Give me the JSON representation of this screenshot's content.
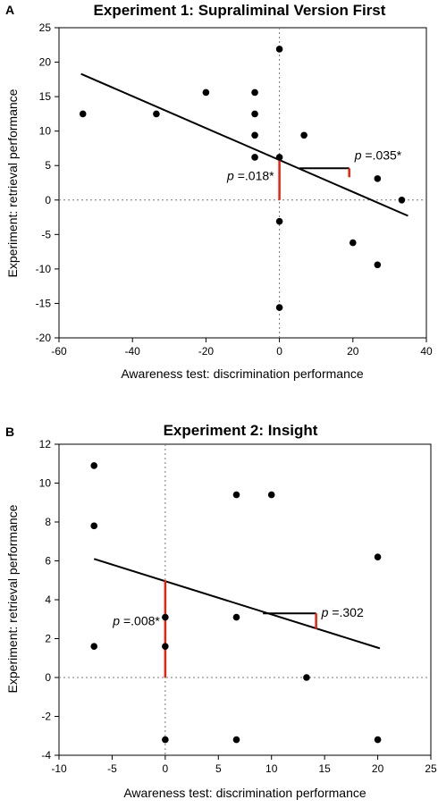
{
  "chart_data": [
    {
      "panel": "A",
      "type": "scatter",
      "title": "Experiment 1: Supraliminal Version First",
      "xlabel": "Awareness test: discrimination performance",
      "ylabel": "Experiment: retrieval performance",
      "xlim": [
        -60,
        40
      ],
      "ylim": [
        -20,
        25
      ],
      "xticks": [
        -60,
        -40,
        -20,
        0,
        20,
        40
      ],
      "yticks": [
        -20,
        -15,
        -10,
        -5,
        0,
        5,
        10,
        15,
        20,
        25
      ],
      "reference_lines": {
        "x": 0,
        "y": 0,
        "style": "dotted"
      },
      "points": [
        {
          "x": -53.5,
          "y": 12.5
        },
        {
          "x": -33.5,
          "y": 12.5
        },
        {
          "x": -20,
          "y": 15.6
        },
        {
          "x": -6.7,
          "y": 15.6
        },
        {
          "x": -6.7,
          "y": 12.5
        },
        {
          "x": -6.7,
          "y": 9.4
        },
        {
          "x": -6.7,
          "y": 6.2
        },
        {
          "x": 0,
          "y": 21.9
        },
        {
          "x": 0,
          "y": 6.2
        },
        {
          "x": 0,
          "y": -3.1
        },
        {
          "x": 0,
          "y": -15.6
        },
        {
          "x": 6.7,
          "y": 9.4
        },
        {
          "x": 20,
          "y": -6.2
        },
        {
          "x": 26.7,
          "y": 3.1
        },
        {
          "x": 26.7,
          "y": -9.4
        },
        {
          "x": 33.3,
          "y": 0
        }
      ],
      "fit_line": {
        "x": [
          -54,
          35
        ],
        "y": [
          18.3,
          -2.3
        ]
      },
      "annotations": {
        "intercept": {
          "label": "p =.018*",
          "x": 0,
          "y_from": 0,
          "y_to": 5.8
        },
        "slope": {
          "label": "p =.035*",
          "x_from": 5.5,
          "x_to": 19,
          "y": 4.6,
          "y_drop": 1.3
        }
      }
    },
    {
      "panel": "B",
      "type": "scatter",
      "title": "Experiment 2: Insight",
      "xlabel": "Awareness test: discrimination performance",
      "ylabel": "Experiment: retrieval performance",
      "xlim": [
        -10,
        25
      ],
      "ylim": [
        -4,
        12
      ],
      "xticks": [
        -10,
        -5,
        0,
        5,
        10,
        15,
        20,
        25
      ],
      "yticks": [
        -4,
        -2,
        0,
        2,
        4,
        6,
        8,
        10,
        12
      ],
      "reference_lines": {
        "x": 0,
        "y": 0,
        "style": "dotted"
      },
      "points": [
        {
          "x": -6.7,
          "y": 10.9
        },
        {
          "x": -6.7,
          "y": 7.8
        },
        {
          "x": -6.7,
          "y": 1.6
        },
        {
          "x": 0,
          "y": 3.1
        },
        {
          "x": 0,
          "y": 1.6
        },
        {
          "x": 0,
          "y": -3.2
        },
        {
          "x": 6.7,
          "y": 9.4
        },
        {
          "x": 6.7,
          "y": 3.1
        },
        {
          "x": 6.7,
          "y": -3.2
        },
        {
          "x": 10,
          "y": 9.4
        },
        {
          "x": 13.3,
          "y": 0
        },
        {
          "x": 20,
          "y": 6.2
        },
        {
          "x": 20,
          "y": -3.2
        }
      ],
      "fit_line": {
        "x": [
          -6.7,
          20.2
        ],
        "y": [
          6.1,
          1.5
        ]
      },
      "annotations": {
        "intercept": {
          "label": "p =.008*",
          "x": 0,
          "y_from": 0,
          "y_to": 5.0
        },
        "slope": {
          "label": "p =.302",
          "x_from": 9.2,
          "x_to": 14.2,
          "y": 3.3,
          "y_drop": 0.8
        }
      }
    }
  ]
}
